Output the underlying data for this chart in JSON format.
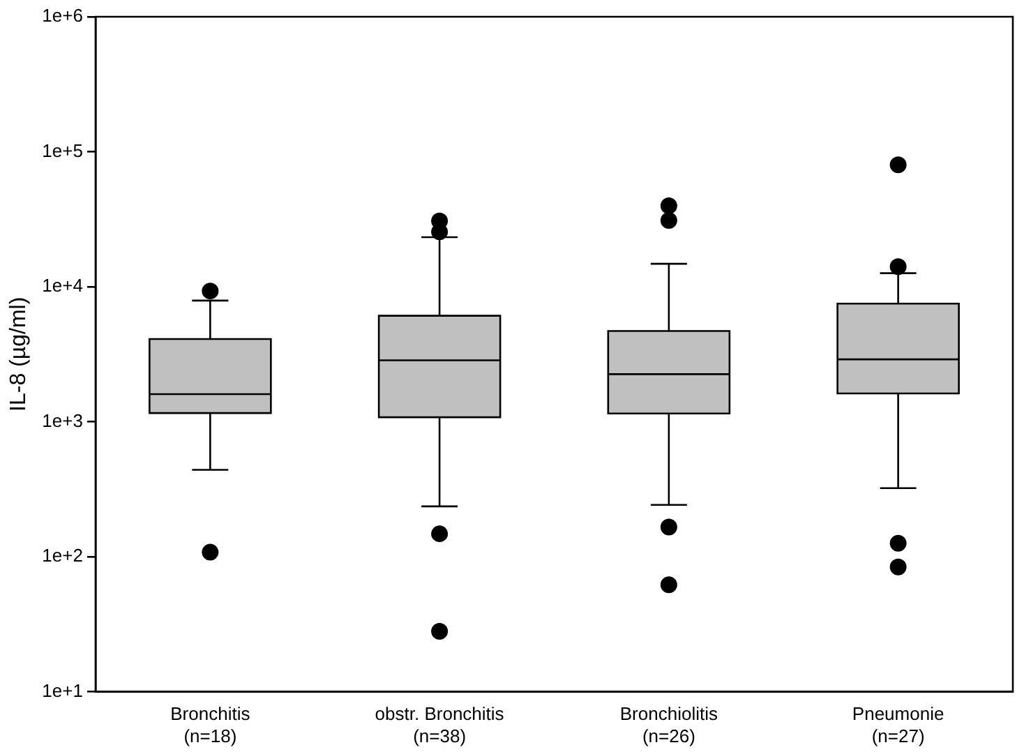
{
  "chart_data": {
    "type": "box",
    "ylabel": "IL-8 (µg/ml)",
    "categories": [
      "Bronchitis\n(n=18)",
      "obstr. Bronchitis\n(n=38)",
      "Bronchiolitis\n(n=26)",
      "Pneumonie\n(n=27)"
    ],
    "color": "#c0c0c0",
    "boxes": [
      {
        "low": 440,
        "q1": 1160,
        "median": 1600,
        "q3": 4100,
        "high": 7900,
        "outliers": [
          9300,
          108
        ]
      },
      {
        "low": 236,
        "q1": 1080,
        "median": 2850,
        "q3": 6100,
        "high": 23300,
        "outliers": [
          30700,
          25500,
          148,
          28
        ]
      },
      {
        "low": 242,
        "q1": 1150,
        "median": 2250,
        "q3": 4700,
        "high": 14800,
        "outliers": [
          39800,
          31000,
          166,
          62
        ]
      },
      {
        "low": 322,
        "q1": 1620,
        "median": 2900,
        "q3": 7500,
        "high": 12600,
        "outliers": [
          80000,
          14100,
          126,
          84
        ]
      }
    ],
    "log": "y",
    "ylim": [
      10,
      1000000
    ],
    "yticks": [
      {
        "value": 10,
        "label": "1e+1"
      },
      {
        "value": 100,
        "label": "1e+2"
      },
      {
        "value": 1000,
        "label": "1e+3"
      },
      {
        "value": 10000,
        "label": "1e+4"
      },
      {
        "value": 100000,
        "label": "1e+5"
      },
      {
        "value": 1000000,
        "label": "1e+6"
      }
    ],
    "grid": false,
    "legend": false
  }
}
